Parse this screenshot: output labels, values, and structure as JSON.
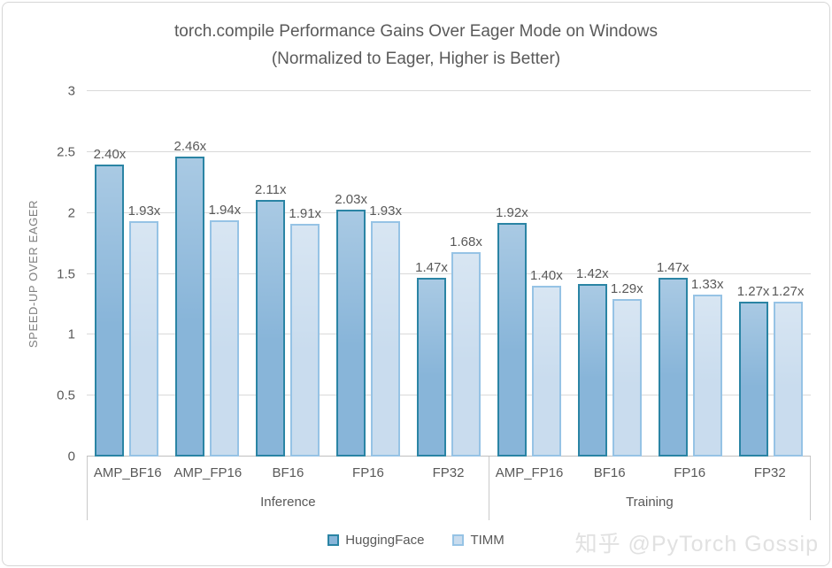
{
  "watermark": {
    "text": "知乎 @PyTorch Gossip"
  },
  "chart_data": {
    "type": "grouped-bar",
    "title": "torch.compile Performance Gains Over Eager Mode on Windows",
    "subtitle": "(Normalized to Eager, Higher is Better)",
    "ylabel": "SPEED-UP OVER EAGER",
    "ylim": [
      0,
      3
    ],
    "yticks": [
      0,
      0.5,
      1,
      1.5,
      2,
      2.5,
      3
    ],
    "grid": true,
    "legend_position": "bottom",
    "sections": [
      {
        "label": "Inference",
        "categories": [
          "AMP_BF16",
          "AMP_FP16",
          "BF16",
          "FP16",
          "FP32"
        ]
      },
      {
        "label": "Training",
        "categories": [
          "AMP_FP16",
          "BF16",
          "FP16",
          "FP32"
        ]
      }
    ],
    "series": [
      {
        "name": "HuggingFace",
        "fill": "#88b5d9",
        "border": "#2a84a4",
        "values": [
          2.4,
          2.46,
          2.11,
          2.03,
          1.47,
          1.92,
          1.42,
          1.47,
          1.27
        ],
        "labels": [
          "2.40x",
          "2.46x",
          "2.11x",
          "2.03x",
          "1.47x",
          "1.92x",
          "1.42x",
          "1.47x",
          "1.27x"
        ]
      },
      {
        "name": "TIMM",
        "fill": "#c9dcee",
        "border": "#96c3e5",
        "values": [
          1.93,
          1.94,
          1.91,
          1.93,
          1.68,
          1.4,
          1.29,
          1.33,
          1.27
        ],
        "labels": [
          "1.93x",
          "1.94x",
          "1.91x",
          "1.93x",
          "1.68x",
          "1.40x",
          "1.29x",
          "1.33x",
          "1.27x"
        ]
      }
    ],
    "colors": {
      "gridline": "#d9d9d9",
      "axis_line": "#bfbfbf",
      "text": "#595959",
      "axis_title_text": "#7f7f7f"
    }
  }
}
